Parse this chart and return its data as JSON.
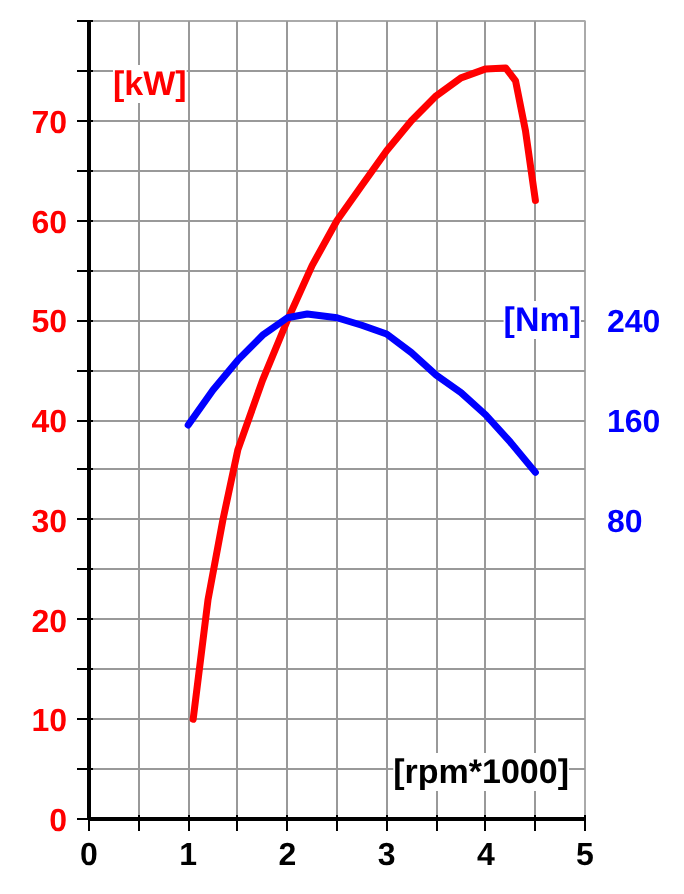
{
  "chart_data": {
    "type": "line",
    "xlabel": "[rpm*1000]",
    "ylabel": "[kW]",
    "y2label": "[Nm]",
    "xlim": [
      0,
      5
    ],
    "ylim": [
      0,
      80
    ],
    "y2lim": [
      -160,
      480
    ],
    "xticks": [
      0,
      {
        "value": 0.5,
        "label": null
      },
      1,
      {
        "value": 1.5,
        "label": null
      },
      2,
      {
        "value": 2.5,
        "label": null
      },
      3,
      {
        "value": 3.5,
        "label": null
      },
      4,
      {
        "value": 4.5,
        "label": null
      },
      5
    ],
    "yticks": [
      0,
      {
        "value": 5,
        "label": null
      },
      10,
      {
        "value": 15,
        "label": null
      },
      20,
      {
        "value": 25,
        "label": null
      },
      30,
      {
        "value": 35,
        "label": null
      },
      40,
      {
        "value": 45,
        "label": null
      },
      50,
      {
        "value": 55,
        "label": null
      },
      60,
      {
        "value": 65,
        "label": null
      },
      70,
      {
        "value": 75,
        "label": null
      },
      {
        "value": 80,
        "label": null
      }
    ],
    "y2ticks": [
      80,
      160,
      240
    ],
    "grid": true,
    "marker": "none",
    "line_style": "solid",
    "series": [
      {
        "color": "#ff0000",
        "x": [
          1.05,
          1.2,
          1.35,
          1.5,
          1.75,
          2,
          2.25,
          2.5,
          2.75,
          3,
          3.25,
          3.5,
          3.75,
          4,
          4.2,
          4.3,
          4.4,
          4.5
        ],
        "values": [
          10,
          22,
          30,
          37,
          44,
          50,
          55.5,
          60,
          63.5,
          67,
          70,
          72.5,
          74.3,
          75.2,
          75.3,
          74,
          69,
          62
        ]
      },
      {
        "color": "#0000ff",
        "axis": "y2",
        "x": [
          1,
          1.25,
          1.5,
          1.75,
          2,
          2.2,
          2.5,
          2.75,
          3,
          3.25,
          3.5,
          3.75,
          4,
          4.25,
          4.5
        ],
        "values": [
          156,
          184,
          208,
          228,
          242,
          245,
          242,
          236,
          229,
          214,
          196,
          182,
          164,
          142,
          118
        ]
      }
    ]
  }
}
